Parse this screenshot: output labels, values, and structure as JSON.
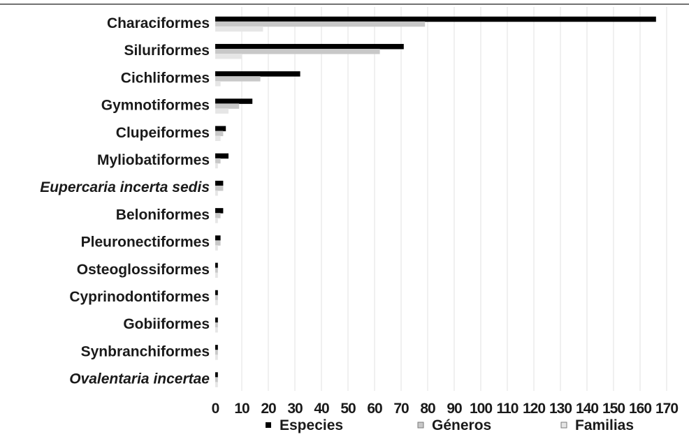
{
  "chart_data": {
    "type": "bar",
    "orientation": "horizontal",
    "categories": [
      "Characiformes",
      "Siluriformes",
      "Cichliformes",
      "Gymnotiformes",
      "Clupeiformes",
      "Myliobatiformes",
      "Eupercaria incerta sedis",
      "Beloniformes",
      "Pleuronectiformes",
      "Osteoglossiformes",
      "Cyprinodontiformes",
      "Gobiiformes",
      "Synbranchiformes",
      "Ovalentaria incertae"
    ],
    "italic_categories": [
      "Eupercaria incerta sedis",
      "Ovalentaria incertae"
    ],
    "series": [
      {
        "name": "Especies",
        "color": "#000000",
        "values": [
          166,
          71,
          32,
          14,
          4,
          5,
          3,
          3,
          2,
          1,
          1,
          1,
          1,
          1
        ]
      },
      {
        "name": "Géneros",
        "color": "#c8c8c8",
        "values": [
          79,
          62,
          17,
          9,
          3,
          2,
          3,
          2,
          2,
          1,
          1,
          1,
          1,
          1
        ]
      },
      {
        "name": "Familias",
        "color": "#e6e6e6",
        "values": [
          18,
          10,
          2,
          5,
          2,
          1,
          1,
          1,
          1,
          1,
          1,
          1,
          1,
          1
        ]
      }
    ],
    "xlim": [
      0,
      170
    ],
    "xticks": [
      0,
      10,
      20,
      30,
      40,
      50,
      60,
      70,
      80,
      90,
      100,
      110,
      120,
      130,
      140,
      150,
      160,
      170
    ],
    "grid": true,
    "legend_position": "bottom",
    "title": "",
    "xlabel": "",
    "ylabel": ""
  }
}
